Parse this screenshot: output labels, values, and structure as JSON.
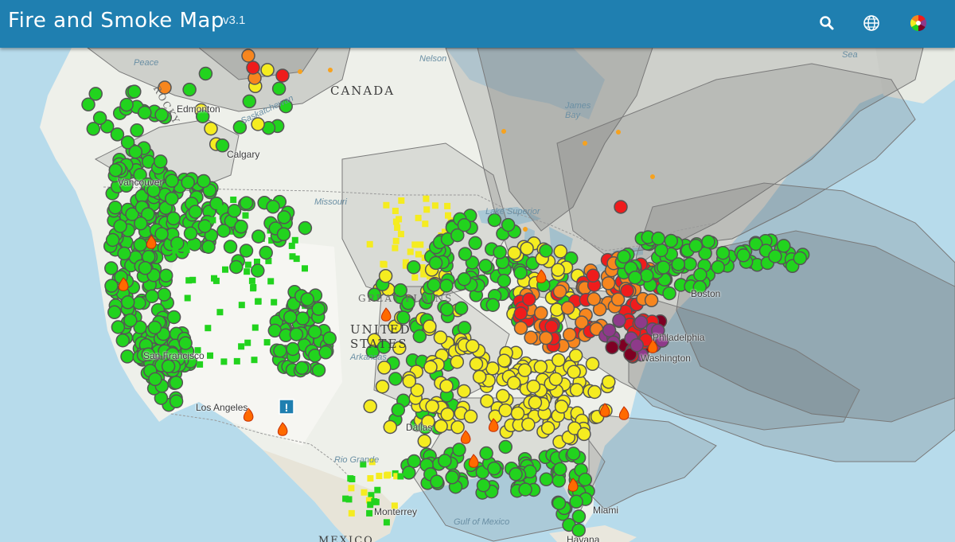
{
  "header": {
    "title": "Fire and Smoke Map",
    "version": "v3.1",
    "search_icon": "search-icon",
    "globe_icon": "globe-icon",
    "legend_icon": "color-wheel-icon",
    "bar_color": "#1f7fb0"
  },
  "map": {
    "country_labels": {
      "canada": "CANADA",
      "united_states": "UNITED STATES",
      "mexico": "MEXICO"
    },
    "region_labels": {
      "great_plains": "GREAT PLAINS",
      "rocky": "ROCKY"
    },
    "city_labels": {
      "edmonton": "Edmonton",
      "calgary": "Calgary",
      "vancouver": "Vancouver",
      "san_francisco": "San Francisco",
      "los_angeles": "Los Angeles",
      "boston": "Boston",
      "philadelphia": "Philadelphia",
      "washington": "Washington",
      "miami": "Miami",
      "dallas": "Dallas",
      "monterrey": "Monterrey",
      "havana": "Havana"
    },
    "water_labels": {
      "gulf_of_mexico": "Gulf of Mexico",
      "james_bay": "James Bay",
      "nelson": "Nelson",
      "sea": "Sea",
      "rio_grande": "Rio Grande",
      "lake_superior": "Lake Superior",
      "missouri": "Missouri",
      "arkansas": "Arkansas",
      "peace": "Peace",
      "saskatchewan": "Saskatchewan"
    },
    "aqi_colors": {
      "good": "#22d31e",
      "moderate": "#f5ec20",
      "unhealthy_sensitive": "#f7861e",
      "unhealthy": "#ef1c1c",
      "very_unhealthy": "#8e3a8a",
      "hazardous": "#7e0023",
      "no_data": "#9a9a9a"
    },
    "smoke_color": "#5e5e5e"
  }
}
